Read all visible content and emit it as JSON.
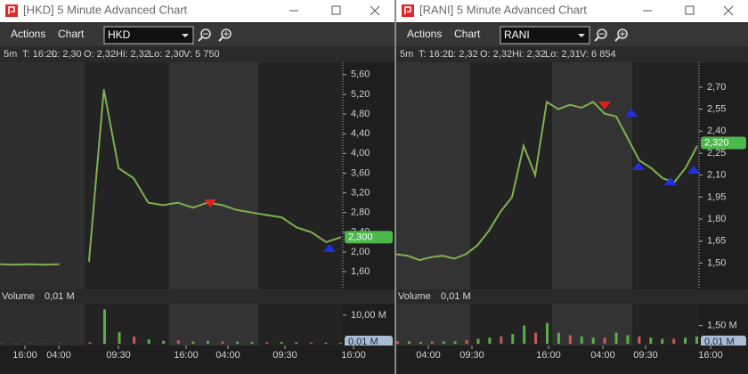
{
  "windows": [
    {
      "title": "[HKD] 5 Minute Advanced Chart",
      "menu": [
        "Actions",
        "Chart"
      ],
      "symbol": "HKD",
      "info": [
        "5m",
        "T: 16:20",
        "L: 2,30",
        "O: 2,32",
        "Hi: 2,32",
        "Lo: 2,30",
        "V: 5 750"
      ],
      "price": {
        "color": "#6cc04a",
        "ylim": [
          1.24,
          5.85
        ],
        "yticks": [
          {
            "value": 5.6,
            "label": "5,60"
          },
          {
            "value": 5.2,
            "label": "5,20"
          },
          {
            "value": 4.8,
            "label": "4,80"
          },
          {
            "value": 4.4,
            "label": "4,40"
          },
          {
            "value": 4.0,
            "label": "4,00"
          },
          {
            "value": 3.6,
            "label": "3,60"
          },
          {
            "value": 3.2,
            "label": "3,20"
          },
          {
            "value": 2.8,
            "label": "2,80"
          },
          {
            "value": 2.4,
            "label": "2,40"
          },
          {
            "value": 2.0,
            "label": "2,00"
          },
          {
            "value": 1.6,
            "label": "1,60"
          }
        ],
        "last": {
          "value": 2.3,
          "label": "2,300"
        },
        "values": [
          1.75,
          1.74,
          1.75,
          1.74,
          1.75,
          null,
          1.8,
          5.3,
          3.7,
          3.5,
          3.0,
          2.95,
          3.0,
          2.9,
          3.0,
          2.95,
          2.85,
          2.8,
          2.75,
          2.7,
          2.5,
          2.4,
          2.2,
          2.3
        ]
      },
      "volume": {
        "header": "Volume",
        "header_value": "0,01 M",
        "color": "#5cae4a",
        "ylim": [
          0,
          14
        ],
        "yticks": [
          {
            "value": 10,
            "label": "10,00 M"
          }
        ],
        "last": {
          "value": 0.01,
          "label": "0,01 M"
        },
        "values": [
          0.1,
          0.1,
          0.1,
          0.1,
          0.1,
          0,
          0.5,
          12,
          4,
          2.5,
          1.5,
          1,
          1.2,
          0.8,
          1,
          0.8,
          0.7,
          0.6,
          0.5,
          0.6,
          0.5,
          0.4,
          0.4,
          0.3
        ]
      },
      "times": [
        "16:00",
        "04:00",
        "09:30",
        "16:00",
        "04:00",
        "09:30",
        "16:00"
      ]
    },
    {
      "title": "[RANI] 5 Minute Advanced Chart",
      "menu": [
        "Actions",
        "Chart"
      ],
      "symbol": "RANI",
      "info": [
        "5m",
        "T: 16:20",
        "L: 2,32",
        "O: 2,32",
        "Hi: 2,32",
        "Lo: 2,31",
        "V: 6 854"
      ],
      "price": {
        "color": "#6cc04a",
        "ylim": [
          1.32,
          2.87
        ],
        "yticks": [
          {
            "value": 2.7,
            "label": "2,70"
          },
          {
            "value": 2.55,
            "label": "2,55"
          },
          {
            "value": 2.4,
            "label": "2,40"
          },
          {
            "value": 2.25,
            "label": "2,25"
          },
          {
            "value": 2.1,
            "label": "2,10"
          },
          {
            "value": 1.95,
            "label": "1,95"
          },
          {
            "value": 1.8,
            "label": "1,80"
          },
          {
            "value": 1.65,
            "label": "1,65"
          },
          {
            "value": 1.5,
            "label": "1,50"
          }
        ],
        "last": {
          "value": 2.32,
          "label": "2,320"
        },
        "values": [
          1.56,
          1.55,
          1.52,
          1.54,
          1.55,
          1.53,
          1.56,
          1.62,
          1.72,
          1.85,
          1.95,
          2.3,
          2.1,
          2.6,
          2.55,
          2.58,
          2.56,
          2.6,
          2.52,
          2.5,
          2.35,
          2.2,
          2.15,
          2.08,
          2.05,
          2.15,
          2.3
        ]
      },
      "volume": {
        "header": "Volume",
        "header_value": "0,01 M",
        "color": "#5cae4a",
        "ylim": [
          0,
          3.3
        ],
        "yticks": [
          {
            "value": 1.5,
            "label": "1,50 M"
          }
        ],
        "last": {
          "value": 0.01,
          "label": "0,01 M"
        },
        "values": [
          0.2,
          0.2,
          0.15,
          0.2,
          0.2,
          0.2,
          0.3,
          0.4,
          0.5,
          0.6,
          0.8,
          1.5,
          0.9,
          1.7,
          0.9,
          0.7,
          0.6,
          0.5,
          0.5,
          0.9,
          0.7,
          0.6,
          0.5,
          0.4,
          0.4,
          0.5,
          0.6
        ]
      },
      "times": [
        "04:00",
        "09:30",
        "16:00",
        "04:00",
        "09:30",
        "16:00"
      ]
    }
  ]
}
